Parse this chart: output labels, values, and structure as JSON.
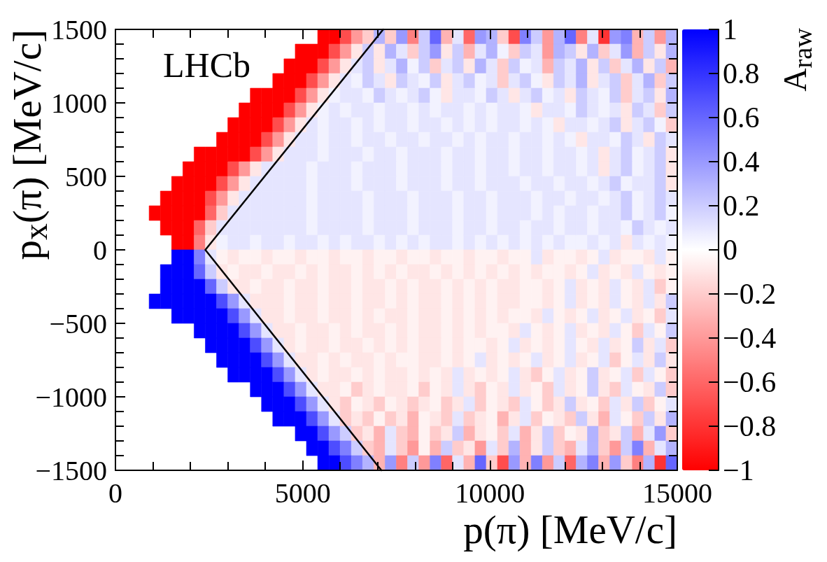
{
  "chart_data": {
    "type": "heatmap",
    "xlabel": "p(π) [MeV/c]",
    "ylabel": "p$_{x}$(π) [MeV/c]",
    "clabel": "A$_{raw}$",
    "annotations": [
      "LHCb"
    ],
    "xlim": [
      0,
      15000
    ],
    "xticks": [
      0,
      {
        "value": 1000,
        "label": null
      },
      {
        "value": 2000,
        "label": null
      },
      {
        "value": 3000,
        "label": null
      },
      {
        "value": 4000,
        "label": null
      },
      5000,
      {
        "value": 6000,
        "label": null
      },
      {
        "value": 7000,
        "label": null
      },
      {
        "value": 8000,
        "label": null
      },
      {
        "value": 9000,
        "label": null
      },
      10000,
      {
        "value": 11000,
        "label": null
      },
      {
        "value": 12000,
        "label": null
      },
      {
        "value": 13000,
        "label": null
      },
      {
        "value": 14000,
        "label": null
      },
      15000
    ],
    "ylim": [
      -1500,
      1500
    ],
    "yticks": [
      {
        "value": -1500,
        "label": "−1500"
      },
      {
        "value": -1400,
        "label": null
      },
      {
        "value": -1300,
        "label": null
      },
      {
        "value": -1200,
        "label": null
      },
      {
        "value": -1100,
        "label": null
      },
      {
        "value": -1000,
        "label": "−1000"
      },
      {
        "value": -900,
        "label": null
      },
      {
        "value": -800,
        "label": null
      },
      {
        "value": -700,
        "label": null
      },
      {
        "value": -600,
        "label": null
      },
      {
        "value": -500,
        "label": "−500"
      },
      {
        "value": -400,
        "label": null
      },
      {
        "value": -300,
        "label": null
      },
      {
        "value": -200,
        "label": null
      },
      {
        "value": -100,
        "label": null
      },
      0,
      {
        "value": 100,
        "label": null
      },
      {
        "value": 200,
        "label": null
      },
      {
        "value": 300,
        "label": null
      },
      {
        "value": 400,
        "label": null
      },
      500,
      {
        "value": 600,
        "label": null
      },
      {
        "value": 700,
        "label": null
      },
      {
        "value": 800,
        "label": null
      },
      {
        "value": 900,
        "label": null
      },
      1000,
      {
        "value": 1100,
        "label": null
      },
      {
        "value": 1200,
        "label": null
      },
      {
        "value": 1300,
        "label": null
      },
      {
        "value": 1400,
        "label": null
      },
      1500
    ],
    "clim": [
      -1,
      1
    ],
    "cticks": [
      {
        "value": -1,
        "label": "−1"
      },
      {
        "value": -0.8,
        "label": "−0.8"
      },
      {
        "value": -0.6,
        "label": "−0.6"
      },
      {
        "value": -0.4,
        "label": "−0.4"
      },
      {
        "value": -0.2,
        "label": "−0.2"
      },
      0,
      0.2,
      0.4,
      0.6,
      0.8,
      1
    ],
    "marker": "none",
    "line_style": "solid",
    "series": [
      {
        "type": "line",
        "color": "#000000",
        "x": [
          7150,
          2400,
          7100
        ],
        "values": [
          1500,
          0,
          -1500
        ]
      }
    ],
    "cells": [
      [
        null,
        null,
        null,
        null,
        null,
        null,
        null,
        null,
        null,
        null,
        null,
        null,
        null,
        null,
        null,
        null,
        null,
        null,
        -1,
        -1,
        -0.7,
        -0.4,
        -0.2,
        0.3,
        -0.2,
        0.4,
        -0.5,
        0.2,
        0.6,
        -0.3,
        0.1,
        -0.6,
        0.4,
        0.3,
        -0.2,
        -0.7,
        0.5,
        0.2,
        -0.4,
        0.3,
        0.6,
        -0.5,
        0.1,
        -0.8,
        0.4,
        0.5,
        -0.3,
        0.2,
        -0.4,
        0.3
      ],
      [
        null,
        null,
        null,
        null,
        null,
        null,
        null,
        null,
        null,
        null,
        null,
        null,
        null,
        null,
        null,
        null,
        -1,
        -1,
        -1,
        -0.7,
        -0.4,
        -0.1,
        0.2,
        -0.1,
        0.3,
        0.1,
        -0.2,
        0.2,
        0.4,
        -0.1,
        0.2,
        -0.3,
        0.1,
        0.3,
        0.05,
        -0.2,
        0.2,
        0.1,
        -0.4,
        0.3,
        0.2,
        -0.1,
        0.3,
        -0.2,
        0.1,
        0.4,
        -0.3,
        0.2,
        -0.1,
        0.3
      ],
      [
        null,
        null,
        null,
        null,
        null,
        null,
        null,
        null,
        null,
        null,
        null,
        null,
        null,
        null,
        null,
        -1,
        -1,
        -1,
        -0.7,
        -0.4,
        -0.1,
        0.1,
        0.2,
        -0.1,
        0.1,
        0.3,
        0.05,
        0.2,
        -0.2,
        0.1,
        0.2,
        -0.1,
        0.3,
        0.1,
        -0.2,
        0.2,
        0.05,
        0.1,
        -0.3,
        0.2,
        0.1,
        0.3,
        -0.1,
        0.2,
        -0.2,
        0.1,
        0.3,
        -0.1,
        0.2,
        -0.3
      ],
      [
        null,
        null,
        null,
        null,
        null,
        null,
        null,
        null,
        null,
        null,
        null,
        null,
        null,
        null,
        -1,
        -1,
        -1,
        -0.7,
        -0.4,
        -0.1,
        0.1,
        0.05,
        0.2,
        0.1,
        -0.1,
        0.2,
        0.1,
        0.05,
        0.2,
        -0.1,
        0.1,
        0.2,
        0.05,
        0.1,
        -0.2,
        0.1,
        0.2,
        0.05,
        -0.1,
        0.2,
        0.1,
        0.3,
        -0.1,
        0.1,
        0.2,
        -0.2,
        0.1,
        0.3,
        -0.2,
        0.2
      ],
      [
        null,
        null,
        null,
        null,
        null,
        null,
        null,
        null,
        null,
        null,
        null,
        null,
        -1,
        -1,
        -1,
        -1,
        -0.7,
        -0.4,
        -0.1,
        0.05,
        0.1,
        0.1,
        0.05,
        0.2,
        0.1,
        0.05,
        0.1,
        0.2,
        0.05,
        -0.1,
        0.1,
        0.1,
        0.05,
        0.2,
        0.1,
        -0.1,
        0.1,
        0.2,
        0.05,
        0.1,
        -0.1,
        0.2,
        0.1,
        0.05,
        0.2,
        -0.2,
        0.1,
        0.2,
        -0.1,
        0.3
      ],
      [
        null,
        null,
        null,
        null,
        null,
        null,
        null,
        null,
        null,
        null,
        null,
        -1,
        -1,
        -1,
        -1,
        -0.7,
        -0.4,
        -0.1,
        0.05,
        0.1,
        0.05,
        0.1,
        0.1,
        0.05,
        0.1,
        0.1,
        0.05,
        0.1,
        0.05,
        0.1,
        0.1,
        0.05,
        0.1,
        0.05,
        0.1,
        0.1,
        0.05,
        -0.1,
        0.1,
        0.1,
        0.05,
        0.2,
        0.1,
        0.05,
        0.1,
        -0.1,
        0.2,
        0.1,
        -0.2,
        0.2
      ],
      [
        null,
        null,
        null,
        null,
        null,
        null,
        null,
        null,
        null,
        null,
        -1,
        -1,
        -1,
        -1,
        -0.7,
        -0.4,
        -0.1,
        0.1,
        0.05,
        0.1,
        0.1,
        0.05,
        0.1,
        0.05,
        0.1,
        0.1,
        0.05,
        0.1,
        0.1,
        0.05,
        0.1,
        0.05,
        0.1,
        0.05,
        0.1,
        0.1,
        0.05,
        0.1,
        0.05,
        -0.1,
        0.1,
        0.1,
        0.05,
        0.1,
        0.2,
        -0.1,
        0.1,
        0.2,
        0.05,
        -0.2
      ],
      [
        null,
        null,
        null,
        null,
        null,
        null,
        null,
        null,
        null,
        -1,
        -1,
        -1,
        -1,
        -0.7,
        -0.4,
        -0.1,
        0.1,
        0.1,
        0.05,
        0.1,
        0.1,
        0.05,
        0.1,
        0.1,
        0.05,
        0.1,
        0.1,
        0.05,
        0.1,
        0.1,
        0.05,
        0.1,
        0.05,
        0.1,
        0.1,
        0.05,
        0.1,
        0.1,
        0.05,
        0.1,
        0.05,
        -0.1,
        0.1,
        0.1,
        0.05,
        0.2,
        0.1,
        -0.1,
        0.2,
        0.1
      ],
      [
        null,
        null,
        null,
        null,
        null,
        null,
        null,
        -1,
        -1,
        -1,
        -1,
        -1,
        -0.7,
        -0.4,
        -0.1,
        0.1,
        0.1,
        0.1,
        0.05,
        0.1,
        0.1,
        0.1,
        0.05,
        0.1,
        0.1,
        0.05,
        0.1,
        0.1,
        0.1,
        0.05,
        0.1,
        0.1,
        0.05,
        0.1,
        0.1,
        0.05,
        0.1,
        0.1,
        0.05,
        0.1,
        0.1,
        0.05,
        0.1,
        -0.1,
        0.1,
        0.2,
        0.05,
        0.1,
        0.2,
        -0.1
      ],
      [
        null,
        null,
        null,
        null,
        null,
        null,
        -1,
        -1,
        -1,
        -1,
        -0.7,
        -0.4,
        -0.1,
        0.1,
        0.1,
        0.1,
        0.1,
        0.05,
        0.1,
        0.1,
        0.1,
        0.05,
        0.1,
        0.1,
        0.1,
        0.05,
        0.1,
        0.1,
        0.1,
        0.05,
        0.1,
        0.1,
        0.05,
        0.1,
        0.1,
        0.05,
        0.1,
        0.1,
        0.05,
        0.1,
        0.1,
        0.05,
        0.1,
        -0.1,
        0.1,
        0.2,
        0.05,
        0.1,
        0.2,
        -0.1
      ],
      [
        null,
        null,
        null,
        null,
        null,
        -1,
        -1,
        -1,
        -1,
        -0.7,
        -0.4,
        -0.1,
        0.1,
        0.1,
        0.1,
        0.1,
        0.1,
        0.05,
        0.1,
        0.1,
        0.1,
        0.05,
        0.1,
        0.1,
        0.1,
        0.05,
        0.1,
        0.1,
        0.1,
        0.05,
        0.1,
        0.1,
        0.05,
        0.1,
        0.1,
        0.1,
        0.05,
        0.1,
        0.1,
        0.05,
        0.1,
        0.1,
        0.05,
        0.1,
        0.2,
        0.05,
        0.1,
        0.1,
        0.2,
        -0.1
      ],
      [
        null,
        null,
        null,
        null,
        -1,
        -1,
        -1,
        -1,
        -0.7,
        -0.4,
        -0.1,
        0.1,
        0.1,
        0.1,
        0.1,
        0.1,
        0.1,
        0.05,
        0.1,
        0.1,
        0.1,
        0.1,
        0.05,
        0.1,
        0.1,
        0.1,
        0.05,
        0.1,
        0.1,
        0.1,
        0.05,
        0.1,
        0.1,
        0.05,
        0.1,
        0.1,
        0.1,
        0.05,
        0.1,
        0.1,
        0.05,
        0.1,
        0.1,
        0.05,
        0.1,
        0.2,
        0.05,
        0.1,
        0.2,
        0.1
      ],
      [
        null,
        null,
        null,
        -1,
        -1,
        -1,
        -1,
        -1,
        -0.6,
        -0.2,
        0.1,
        0.1,
        0.1,
        0.1,
        0.1,
        0.1,
        0.1,
        0.05,
        0.1,
        0.1,
        0.1,
        0.1,
        0.05,
        0.1,
        0.1,
        0.1,
        0.05,
        0.1,
        0.1,
        0.1,
        0.05,
        0.1,
        0.1,
        0.05,
        0.1,
        0.1,
        0.1,
        0.05,
        0.1,
        0.05,
        0.1,
        0.1,
        0.05,
        0.1,
        0.1,
        0.2,
        0.05,
        0.1,
        0.2,
        0.05
      ],
      [
        null,
        null,
        null,
        null,
        -1,
        -1,
        -1,
        -0.6,
        -0.2,
        0.1,
        0.1,
        0.1,
        0.1,
        0.1,
        0.1,
        0.1,
        0.1,
        0.05,
        0.1,
        0.1,
        0.1,
        0.1,
        0.05,
        0.1,
        0.1,
        0.1,
        0.05,
        0.1,
        0.1,
        0.1,
        0.05,
        0.1,
        0.1,
        0.05,
        0.1,
        0.1,
        0.05,
        0.1,
        0.1,
        0.05,
        0.1,
        0.1,
        0.05,
        0.1,
        0.1,
        0.05,
        0.2,
        0.1,
        0.05,
        0.1
      ],
      [
        null,
        null,
        null,
        null,
        null,
        -1,
        -1,
        -0.5,
        -0.1,
        0.05,
        0.1,
        0.1,
        0.05,
        0.1,
        0.1,
        0.05,
        0.1,
        0.1,
        0.05,
        0.1,
        0.05,
        0.1,
        0.1,
        0.05,
        0.1,
        0.05,
        0.1,
        0.05,
        0.1,
        0.1,
        0.05,
        0.1,
        0.05,
        0.1,
        0.05,
        0.1,
        0.05,
        0.1,
        0.05,
        0.1,
        0.05,
        0.05,
        0.1,
        0.05,
        0.1,
        -0.1,
        0.1,
        0.05,
        0.1,
        0.05
      ],
      [
        null,
        null,
        null,
        null,
        null,
        1,
        1,
        0.5,
        0.1,
        -0.05,
        -0.1,
        -0.05,
        -0.05,
        -0.1,
        -0.05,
        -0.05,
        -0.1,
        -0.05,
        -0.05,
        -0.1,
        -0.05,
        -0.05,
        -0.1,
        -0.05,
        -0.05,
        -0.1,
        -0.05,
        -0.05,
        -0.1,
        -0.05,
        -0.05,
        -0.1,
        -0.05,
        -0.05,
        -0.1,
        -0.05,
        -0.05,
        0.1,
        -0.1,
        -0.05,
        -0.05,
        -0.1,
        -0.05,
        0.1,
        -0.1,
        -0.05,
        -0.05,
        -0.1,
        0.1,
        -0.05
      ],
      [
        null,
        null,
        null,
        null,
        1,
        1,
        1,
        0.6,
        0.2,
        -0.1,
        -0.05,
        -0.1,
        -0.1,
        -0.05,
        -0.1,
        -0.1,
        -0.05,
        -0.1,
        -0.05,
        -0.1,
        -0.1,
        -0.05,
        -0.1,
        -0.05,
        -0.1,
        -0.05,
        -0.1,
        -0.1,
        -0.05,
        -0.1,
        -0.05,
        -0.1,
        -0.05,
        -0.1,
        -0.05,
        -0.1,
        -0.05,
        -0.1,
        -0.05,
        -0.05,
        -0.1,
        -0.05,
        0.1,
        -0.1,
        -0.05,
        -0.1,
        0.1,
        -0.05,
        -0.1,
        -0.05
      ],
      [
        null,
        null,
        null,
        null,
        1,
        1,
        1,
        1,
        0.6,
        0.2,
        -0.1,
        -0.1,
        -0.05,
        -0.1,
        -0.1,
        -0.05,
        -0.1,
        -0.1,
        -0.05,
        -0.1,
        -0.1,
        -0.05,
        -0.1,
        -0.1,
        -0.05,
        -0.1,
        -0.05,
        -0.1,
        -0.1,
        -0.05,
        -0.1,
        -0.05,
        -0.1,
        -0.05,
        -0.1,
        -0.1,
        -0.05,
        -0.05,
        -0.1,
        -0.05,
        0.1,
        -0.1,
        -0.05,
        -0.1,
        0.1,
        -0.05,
        -0.1,
        0.1,
        -0.2,
        -0.05
      ],
      [
        null,
        null,
        null,
        1,
        1,
        1,
        1,
        1,
        1,
        0.7,
        0.4,
        0.1,
        -0.1,
        -0.1,
        -0.1,
        -0.05,
        -0.1,
        -0.1,
        -0.05,
        -0.1,
        -0.1,
        -0.05,
        -0.1,
        -0.1,
        -0.05,
        -0.1,
        -0.05,
        -0.1,
        -0.1,
        -0.05,
        -0.1,
        -0.05,
        -0.1,
        -0.05,
        -0.1,
        -0.1,
        -0.05,
        -0.05,
        -0.1,
        -0.05,
        0.1,
        -0.1,
        -0.05,
        -0.1,
        0.1,
        -0.05,
        -0.1,
        0.1,
        -0.1,
        0.2
      ],
      [
        null,
        null,
        null,
        null,
        null,
        1,
        1,
        1,
        1,
        1,
        0.7,
        0.4,
        0.1,
        -0.1,
        -0.1,
        -0.05,
        -0.1,
        -0.1,
        -0.05,
        -0.1,
        -0.1,
        -0.05,
        -0.1,
        -0.05,
        -0.1,
        -0.1,
        -0.05,
        -0.1,
        -0.1,
        -0.05,
        -0.1,
        -0.05,
        -0.1,
        -0.05,
        -0.1,
        -0.05,
        -0.05,
        -0.1,
        0.1,
        -0.05,
        -0.1,
        -0.05,
        0.1,
        -0.1,
        -0.05,
        0.1,
        -0.1,
        -0.05,
        -0.2,
        0.1
      ],
      [
        null,
        null,
        null,
        null,
        null,
        null,
        null,
        1,
        1,
        1,
        1,
        0.7,
        0.4,
        0.1,
        -0.1,
        -0.1,
        -0.05,
        -0.1,
        -0.1,
        -0.05,
        -0.1,
        -0.05,
        -0.1,
        -0.1,
        -0.05,
        -0.1,
        -0.05,
        -0.1,
        -0.1,
        -0.05,
        -0.1,
        -0.05,
        -0.1,
        -0.05,
        -0.05,
        -0.1,
        0.1,
        -0.05,
        -0.1,
        -0.05,
        0.1,
        -0.1,
        -0.05,
        -0.1,
        0.1,
        -0.05,
        -0.2,
        0.1,
        -0.05,
        0.2
      ],
      [
        null,
        null,
        null,
        null,
        null,
        null,
        null,
        null,
        1,
        1,
        1,
        1,
        0.7,
        0.4,
        0.1,
        -0.1,
        -0.05,
        -0.1,
        -0.1,
        -0.05,
        -0.1,
        -0.1,
        -0.05,
        -0.1,
        -0.05,
        -0.1,
        -0.05,
        -0.1,
        -0.1,
        -0.05,
        -0.1,
        -0.05,
        -0.05,
        -0.1,
        -0.05,
        0.1,
        -0.1,
        -0.05,
        -0.1,
        -0.05,
        0.1,
        -0.05,
        -0.1,
        0.1,
        -0.1,
        -0.05,
        0.2,
        -0.1,
        0.1,
        -0.2
      ],
      [
        null,
        null,
        null,
        null,
        null,
        null,
        null,
        null,
        null,
        1,
        1,
        1,
        1,
        0.7,
        0.4,
        0.1,
        -0.1,
        -0.1,
        -0.05,
        -0.1,
        -0.05,
        -0.1,
        -0.1,
        -0.05,
        -0.1,
        -0.05,
        -0.05,
        -0.1,
        -0.1,
        -0.05,
        -0.1,
        -0.05,
        0.1,
        -0.1,
        -0.05,
        -0.1,
        -0.05,
        0.1,
        -0.1,
        -0.05,
        0.1,
        -0.1,
        -0.05,
        0.1,
        -0.2,
        -0.05,
        0.1,
        -0.1,
        0.2,
        -0.1
      ],
      [
        null,
        null,
        null,
        null,
        null,
        null,
        null,
        null,
        null,
        null,
        1,
        1,
        1,
        1,
        0.7,
        0.4,
        0.1,
        -0.1,
        -0.05,
        -0.1,
        -0.1,
        -0.05,
        -0.1,
        -0.05,
        -0.1,
        -0.1,
        -0.05,
        -0.1,
        -0.05,
        -0.1,
        0.1,
        -0.1,
        -0.05,
        -0.1,
        -0.05,
        0.1,
        -0.1,
        -0.2,
        -0.05,
        0.1,
        -0.1,
        -0.05,
        0.2,
        -0.1,
        -0.05,
        0.1,
        -0.2,
        0.1,
        -0.05,
        -0.2
      ],
      [
        null,
        null,
        null,
        null,
        null,
        null,
        null,
        null,
        null,
        null,
        null,
        null,
        1,
        1,
        1,
        0.7,
        0.4,
        0.1,
        -0.1,
        -0.1,
        -0.05,
        -0.2,
        -0.1,
        -0.05,
        -0.1,
        -0.1,
        -0.05,
        -0.2,
        -0.05,
        -0.1,
        0.1,
        -0.1,
        -0.2,
        -0.05,
        -0.1,
        0.1,
        -0.1,
        -0.05,
        -0.2,
        0.1,
        -0.1,
        -0.05,
        0.2,
        -0.1,
        -0.2,
        0.1,
        -0.05,
        -0.1,
        0.2,
        -0.2
      ],
      [
        null,
        null,
        null,
        null,
        null,
        null,
        null,
        null,
        null,
        null,
        null,
        null,
        null,
        1,
        1,
        1,
        0.7,
        0.4,
        0.1,
        -0.1,
        -0.2,
        -0.05,
        -0.1,
        -0.2,
        -0.05,
        -0.1,
        -0.2,
        -0.1,
        -0.05,
        -0.2,
        -0.1,
        0.1,
        -0.2,
        -0.05,
        -0.1,
        -0.2,
        0.1,
        -0.05,
        -0.2,
        -0.1,
        0.2,
        -0.1,
        -0.05,
        -0.2,
        0.1,
        -0.1,
        0.2,
        -0.2,
        -0.05,
        0.1
      ],
      [
        null,
        null,
        null,
        null,
        null,
        null,
        null,
        null,
        null,
        null,
        null,
        null,
        null,
        null,
        1,
        1,
        1,
        0.7,
        0.4,
        0.1,
        -0.2,
        -0.1,
        -0.2,
        -0.05,
        -0.2,
        -0.1,
        -0.3,
        -0.05,
        -0.1,
        -0.2,
        0.1,
        -0.2,
        -0.1,
        -0.05,
        -0.3,
        -0.1,
        0.1,
        -0.2,
        -0.05,
        -0.1,
        -0.2,
        0.2,
        -0.1,
        -0.3,
        0.1,
        -0.05,
        -0.2,
        0.2,
        -0.1,
        0.3
      ],
      [
        null,
        null,
        null,
        null,
        null,
        null,
        null,
        null,
        null,
        null,
        null,
        null,
        null,
        null,
        null,
        null,
        1,
        1,
        0.7,
        0.4,
        0.2,
        -0.2,
        -0.1,
        -0.3,
        0.1,
        -0.2,
        -0.3,
        -0.05,
        -0.2,
        -0.1,
        0.2,
        -0.3,
        -0.1,
        -0.05,
        -0.2,
        0.1,
        -0.3,
        -0.1,
        0.2,
        -0.2,
        -0.05,
        -0.1,
        0.3,
        -0.2,
        -0.1,
        0.2,
        -0.3,
        0.1,
        0.4,
        -0.2
      ],
      [
        null,
        null,
        null,
        null,
        null,
        null,
        null,
        null,
        null,
        null,
        null,
        null,
        null,
        null,
        null,
        null,
        null,
        1,
        1,
        0.7,
        0.5,
        0.2,
        -0.2,
        -0.3,
        0.1,
        -0.2,
        -0.4,
        -0.05,
        -0.3,
        0.2,
        -0.2,
        -0.1,
        -0.4,
        0.1,
        -0.2,
        0.3,
        -0.3,
        -0.1,
        0.2,
        -0.2,
        -0.3,
        0.1,
        0.3,
        -0.2,
        -0.4,
        0.2,
        0.5,
        -0.3,
        0.1,
        0.3
      ],
      [
        null,
        null,
        null,
        null,
        null,
        null,
        null,
        null,
        null,
        null,
        null,
        null,
        null,
        null,
        null,
        null,
        null,
        null,
        1,
        1,
        0.7,
        0.5,
        0.3,
        -0.3,
        0.4,
        -0.5,
        0.2,
        -0.4,
        0.5,
        -0.6,
        0.1,
        -0.3,
        0.6,
        -0.2,
        -0.7,
        0.4,
        -0.3,
        0.5,
        -0.4,
        0.2,
        -0.6,
        0.3,
        0.5,
        -0.3,
        0.4,
        -0.2,
        -0.5,
        0.3,
        -0.8,
        0.6
      ]
    ]
  }
}
